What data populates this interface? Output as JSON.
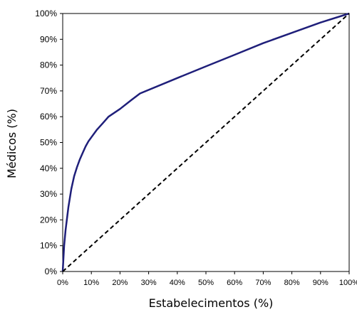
{
  "chart_data": {
    "type": "line",
    "title": "",
    "xlabel": "Estabelecimentos (%)",
    "ylabel": "Médicos (%)",
    "xlim": [
      0,
      100
    ],
    "ylim": [
      0,
      100
    ],
    "x_ticks": [
      "0%",
      "10%",
      "20%",
      "30%",
      "40%",
      "50%",
      "60%",
      "70%",
      "80%",
      "90%",
      "100%"
    ],
    "y_ticks": [
      "0%",
      "10%",
      "20%",
      "30%",
      "40%",
      "50%",
      "60%",
      "70%",
      "80%",
      "90%",
      "100%"
    ],
    "grid": false,
    "legend": "none",
    "series": [
      {
        "style": "solid",
        "color": "#1f1f7a",
        "points": [
          [
            0,
            0
          ],
          [
            0.5,
            10
          ],
          [
            1,
            16
          ],
          [
            2,
            25
          ],
          [
            3,
            32
          ],
          [
            4,
            37
          ],
          [
            5,
            40.5
          ],
          [
            6,
            43.5
          ],
          [
            7,
            46
          ],
          [
            8,
            48.5
          ],
          [
            9,
            50.5
          ],
          [
            10,
            52
          ],
          [
            12,
            55
          ],
          [
            14,
            57.5
          ],
          [
            16,
            60
          ],
          [
            20,
            63
          ],
          [
            24,
            66.5
          ],
          [
            27,
            69
          ],
          [
            40,
            75
          ],
          [
            50,
            79.5
          ],
          [
            60,
            84
          ],
          [
            70,
            88.5
          ],
          [
            80,
            92.5
          ],
          [
            90,
            96.5
          ],
          [
            100,
            100
          ]
        ]
      },
      {
        "style": "dashed",
        "color": "#000000",
        "points": [
          [
            0,
            0
          ],
          [
            100,
            100
          ]
        ]
      }
    ]
  }
}
